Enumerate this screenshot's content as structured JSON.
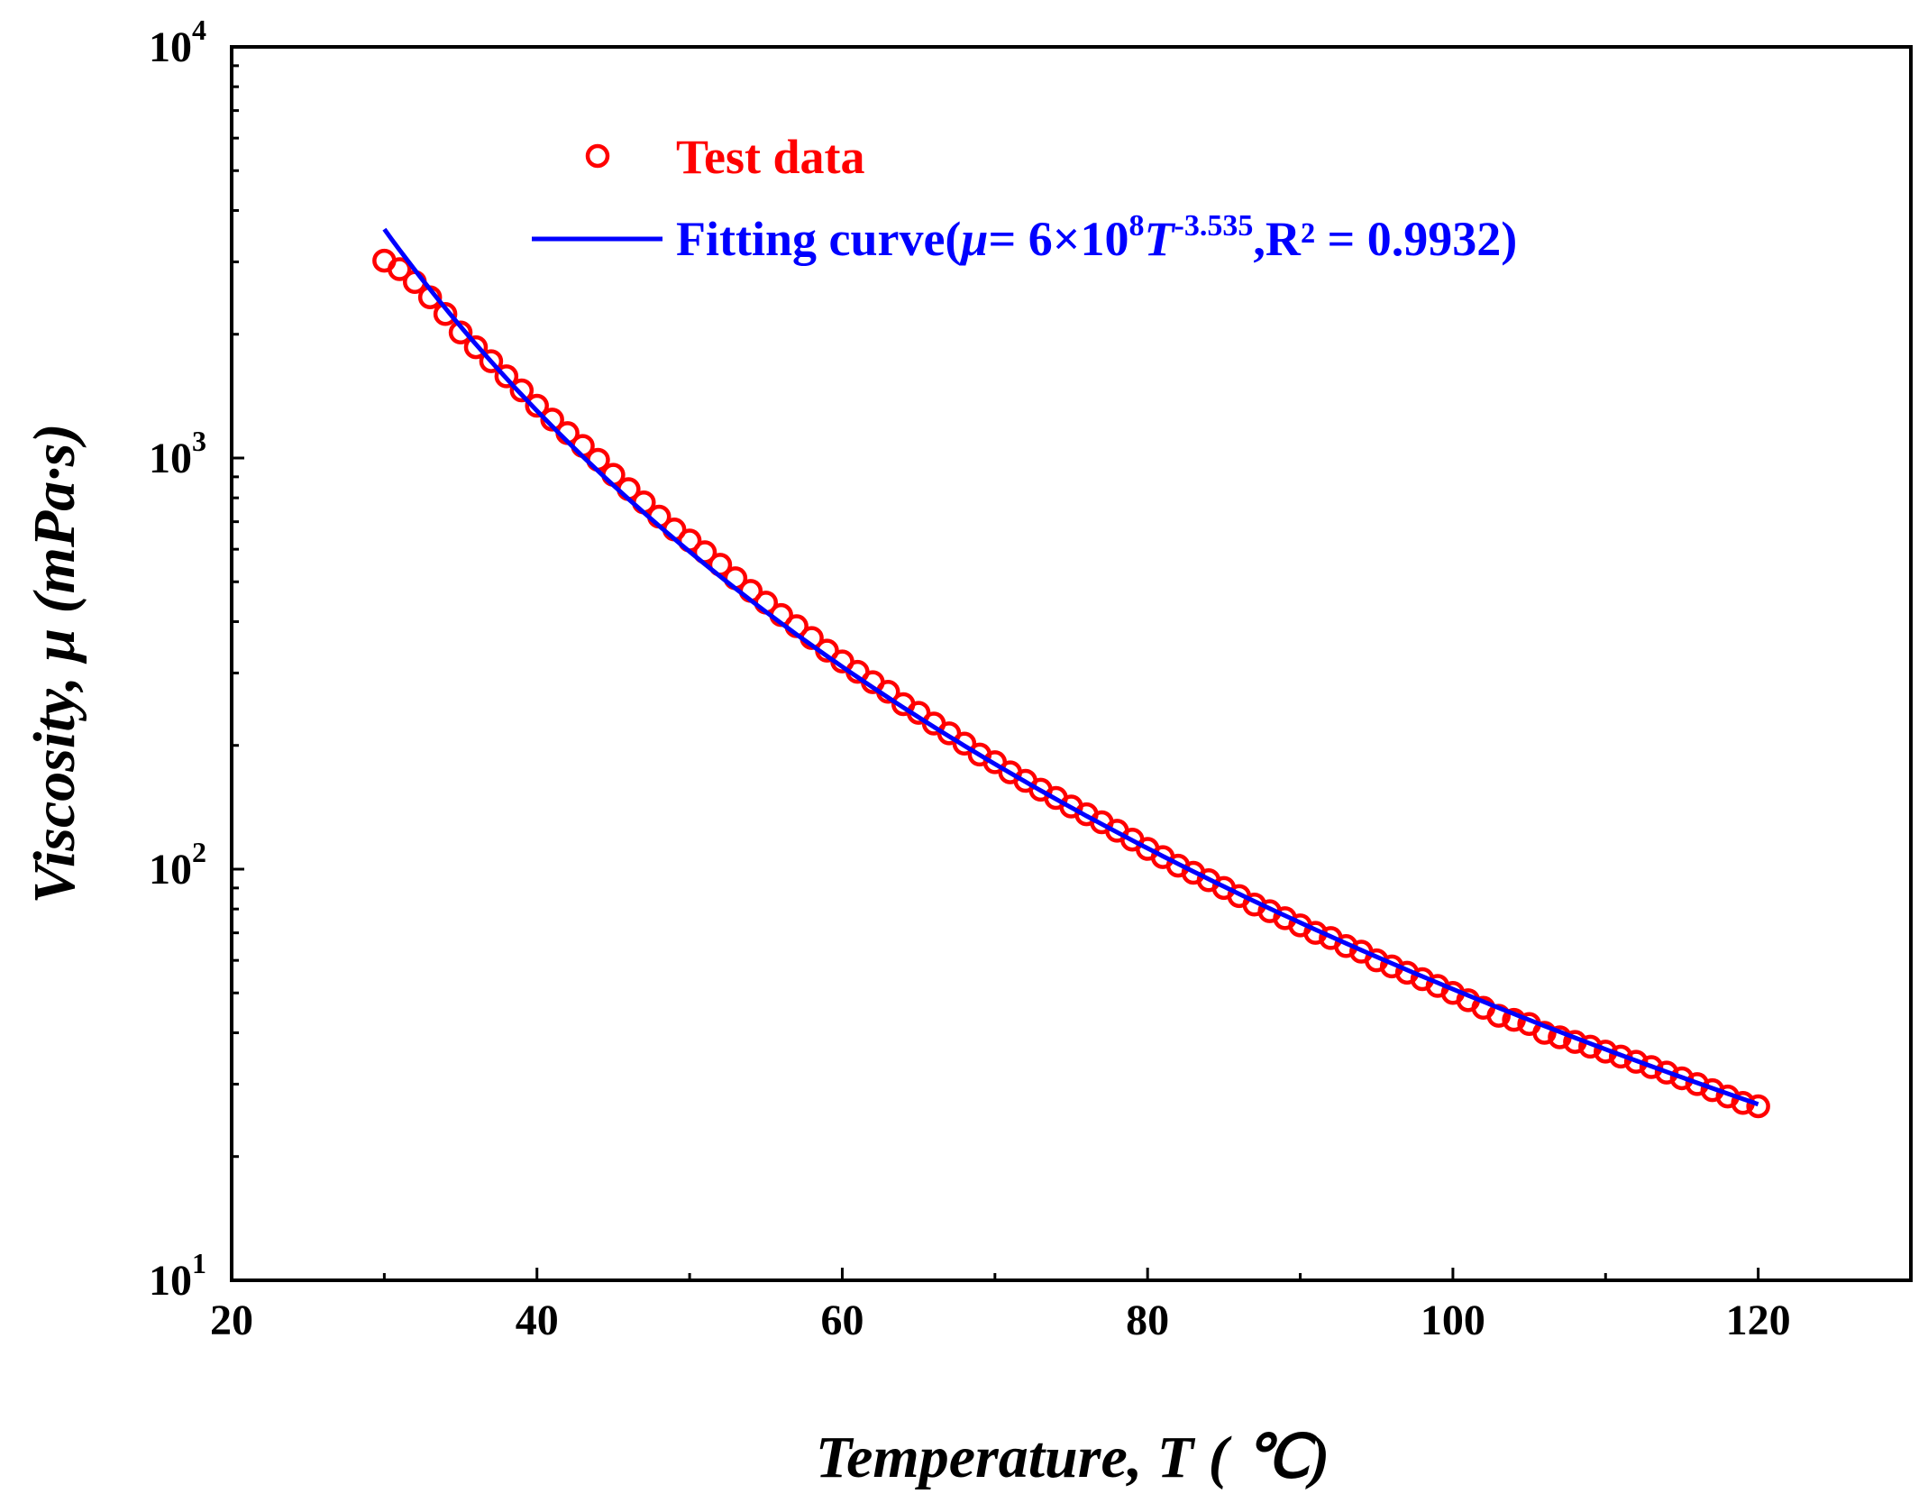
{
  "chart_data": {
    "type": "scatter",
    "title": "",
    "xlabel_main": "Temperature, ",
    "xlabel_var": "T",
    "xlabel_unit": " ( ℃)",
    "ylabel_main": "Viscosity, ",
    "ylabel_var": "μ",
    "ylabel_unit": " (mPa·s)",
    "xlim": [
      20,
      130
    ],
    "ylim": [
      10,
      10000
    ],
    "yscale": "log",
    "x_ticks": [
      20,
      40,
      60,
      80,
      100,
      120
    ],
    "x_tick_labels": [
      "20",
      "40",
      "60",
      "80",
      "100",
      "120"
    ],
    "y_ticks": [
      10,
      100,
      1000,
      10000
    ],
    "y_tick_base": "10",
    "y_tick_exps": [
      "1",
      "2",
      "3",
      "4"
    ],
    "legend_position": "top-left",
    "series": [
      {
        "name": "Test data",
        "type": "scatter",
        "color": "#ff0000",
        "marker": "open-circle",
        "x": [
          30,
          31,
          32,
          33,
          34,
          35,
          36,
          37,
          38,
          39,
          40,
          41,
          42,
          43,
          44,
          45,
          46,
          47,
          48,
          49,
          50,
          51,
          52,
          53,
          54,
          55,
          56,
          57,
          58,
          59,
          60,
          61,
          62,
          63,
          64,
          65,
          66,
          67,
          68,
          69,
          70,
          71,
          72,
          73,
          74,
          75,
          76,
          77,
          78,
          79,
          80,
          81,
          82,
          83,
          84,
          85,
          86,
          87,
          88,
          89,
          90,
          91,
          92,
          93,
          94,
          95,
          96,
          97,
          98,
          99,
          100,
          101,
          102,
          103,
          104,
          105,
          106,
          107,
          108,
          109,
          110,
          111,
          112,
          113,
          114,
          115,
          116,
          117,
          118,
          119,
          120
        ],
        "y": [
          3020,
          2880,
          2680,
          2460,
          2240,
          2020,
          1860,
          1720,
          1580,
          1460,
          1340,
          1240,
          1150,
          1070,
          990,
          910,
          840,
          780,
          720,
          670,
          630,
          590,
          550,
          510,
          475,
          445,
          415,
          390,
          365,
          340,
          320,
          302,
          285,
          270,
          252,
          240,
          226,
          214,
          202,
          190,
          182,
          172,
          164,
          156,
          149,
          142,
          136,
          130,
          124,
          118,
          112,
          107,
          102,
          98,
          94,
          90,
          86,
          82,
          79,
          76,
          73,
          70,
          68,
          65,
          63,
          60,
          58,
          56,
          54,
          52,
          50,
          48,
          46,
          44,
          43,
          42,
          40,
          39,
          38,
          37,
          36,
          35,
          34,
          33,
          32,
          31,
          30,
          29,
          28,
          27,
          26.5
        ]
      },
      {
        "name": "Fitting curve",
        "type": "line",
        "color": "#0000ff",
        "equation": {
          "a": 600000000,
          "b": -3.535
        },
        "x_range": [
          30,
          120
        ]
      }
    ],
    "legend": {
      "test_label": "Test data",
      "fit_prefix": "Fitting curve(",
      "fit_mu": "μ",
      "fit_eq1": "= 6×10",
      "fit_exp8": "8",
      "fit_T": "T",
      "fit_exp": "-3.535",
      "fit_r2": ",R² = 0.9932)"
    }
  },
  "colors": {
    "test": "#ff0000",
    "fit": "#0000ff",
    "axis": "#000000"
  }
}
